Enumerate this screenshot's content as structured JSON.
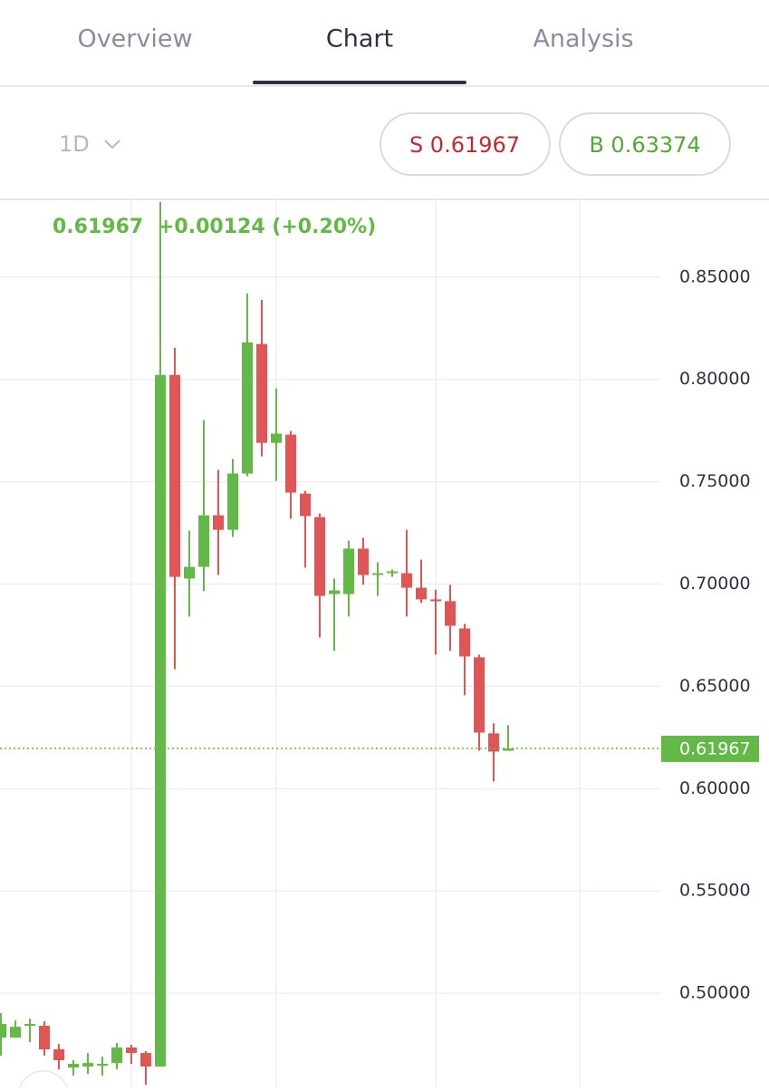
{
  "tabs": [
    "Overview",
    "Chart",
    "Analysis"
  ],
  "timeframe": "1D",
  "sell_button": "S 0.61967",
  "buy_button": "B 0.63374",
  "chart_data": {
    "type": "candlestick",
    "header": [
      "0.61967",
      "+0.00124 (+0.20%)"
    ],
    "up_color": "#62b946",
    "down_color": "#e05656",
    "ylim": [
      0.454,
      0.888
    ],
    "yticks": [
      {
        "value": 0.5,
        "label": "0.50000"
      },
      {
        "value": 0.55,
        "label": "0.55000"
      },
      {
        "value": 0.6,
        "label": "0.60000"
      },
      {
        "value": 0.65,
        "label": "0.65000"
      },
      {
        "value": 0.7,
        "label": "0.70000"
      },
      {
        "value": 0.75,
        "label": "0.75000"
      },
      {
        "value": 0.8,
        "label": "0.80000"
      },
      {
        "value": 0.85,
        "label": "0.85000"
      }
    ],
    "grid": true,
    "last_price": {
      "value": 0.61967,
      "label": "0.61967"
    },
    "open": [
      0.4783,
      0.4783,
      0.4845,
      0.4841,
      0.4726,
      0.4637,
      0.4642,
      0.4646,
      0.4659,
      0.4735,
      0.4708,
      0.4642,
      0.8022,
      0.7027,
      0.7084,
      0.7336,
      0.7265,
      0.754,
      0.8173,
      0.769,
      0.773,
      0.7442,
      0.7327,
      0.6951,
      0.6951,
      0.7173,
      0.7044,
      0.7053,
      0.7053,
      0.6982,
      0.6925,
      0.6916,
      0.6783,
      0.6642,
      0.627,
      0.6185
    ],
    "high": [
      0.4903,
      0.4867,
      0.4876,
      0.4863,
      0.4752,
      0.4673,
      0.4708,
      0.469,
      0.4757,
      0.4748,
      0.4717,
      0.8867,
      0.8155,
      0.7261,
      0.7801,
      0.7558,
      0.7611,
      0.842,
      0.8389,
      0.7956,
      0.7748,
      0.7456,
      0.7345,
      0.7027,
      0.7212,
      0.7226,
      0.7106,
      0.7071,
      0.7265,
      0.7119,
      0.6973,
      0.6996,
      0.6805,
      0.6655,
      0.6319,
      0.631
    ],
    "low": [
      0.4695,
      0.4783,
      0.4761,
      0.4695,
      0.4628,
      0.4597,
      0.4606,
      0.4597,
      0.4628,
      0.4655,
      0.4553,
      0.4642,
      0.6584,
      0.6841,
      0.6965,
      0.7044,
      0.723,
      0.7527,
      0.7624,
      0.7504,
      0.7319,
      0.708,
      0.6739,
      0.6673,
      0.6841,
      0.6996,
      0.6942,
      0.7035,
      0.6841,
      0.6907,
      0.6655,
      0.6673,
      0.6456,
      0.6186,
      0.6035,
      0.6185
    ],
    "close": [
      0.485,
      0.4836,
      0.485,
      0.4726,
      0.4673,
      0.4655,
      0.4659,
      0.4655,
      0.4735,
      0.4708,
      0.4642,
      0.8022,
      0.7035,
      0.7084,
      0.7336,
      0.7265,
      0.754,
      0.8181,
      0.769,
      0.7735,
      0.7447,
      0.7332,
      0.6942,
      0.6969,
      0.7173,
      0.7044,
      0.7053,
      0.7062,
      0.6982,
      0.6925,
      0.6916,
      0.6796,
      0.6646,
      0.6274,
      0.6181,
      0.61967
    ]
  }
}
